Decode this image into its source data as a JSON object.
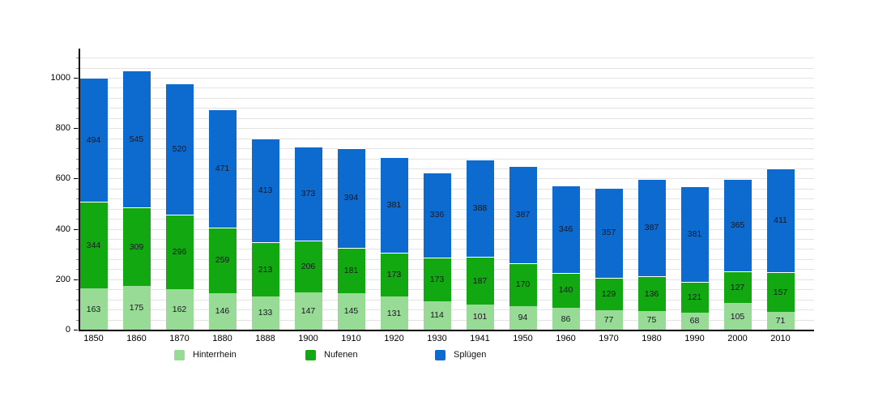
{
  "chart_data": {
    "type": "bar",
    "stacked": true,
    "title": "",
    "xlabel": "",
    "ylabel": "",
    "categories": [
      "1850",
      "1860",
      "1870",
      "1880",
      "1888",
      "1900",
      "1910",
      "1920",
      "1930",
      "1941",
      "1950",
      "1960",
      "1970",
      "1980",
      "1990",
      "2000",
      "2010"
    ],
    "series": [
      {
        "name": "Hinterrhein",
        "color": "#97db97",
        "values": [
          163,
          175,
          162,
          146,
          133,
          147,
          145,
          131,
          114,
          101,
          94,
          86,
          77,
          75,
          68,
          105,
          71
        ]
      },
      {
        "name": "Nufenen",
        "color": "#12a812",
        "values": [
          344,
          309,
          296,
          259,
          213,
          206,
          181,
          173,
          173,
          187,
          170,
          140,
          129,
          136,
          121,
          127,
          157
        ]
      },
      {
        "name": "Splügen",
        "color": "#0d6bd0",
        "values": [
          494,
          545,
          520,
          471,
          413,
          373,
          394,
          381,
          336,
          388,
          387,
          346,
          357,
          387,
          381,
          365,
          411
        ]
      }
    ],
    "ylim": [
      0,
      1100
    ],
    "yticks": [
      0,
      200,
      400,
      600,
      800,
      1000
    ],
    "grid": true,
    "grid_interval": 40,
    "grid_max": 1080,
    "legend_position": "bottom",
    "value_labels": true,
    "colors": {
      "axis": "#000000",
      "gridline": "#e3e3e3",
      "value_label_text": "#17171f",
      "background": "#ffffff"
    }
  },
  "legend": {
    "items": [
      {
        "label": "Hinterrhein",
        "color": "#97db97"
      },
      {
        "label": "Nufenen",
        "color": "#12a812"
      },
      {
        "label": "Splügen",
        "color": "#0d6bd0"
      }
    ]
  }
}
